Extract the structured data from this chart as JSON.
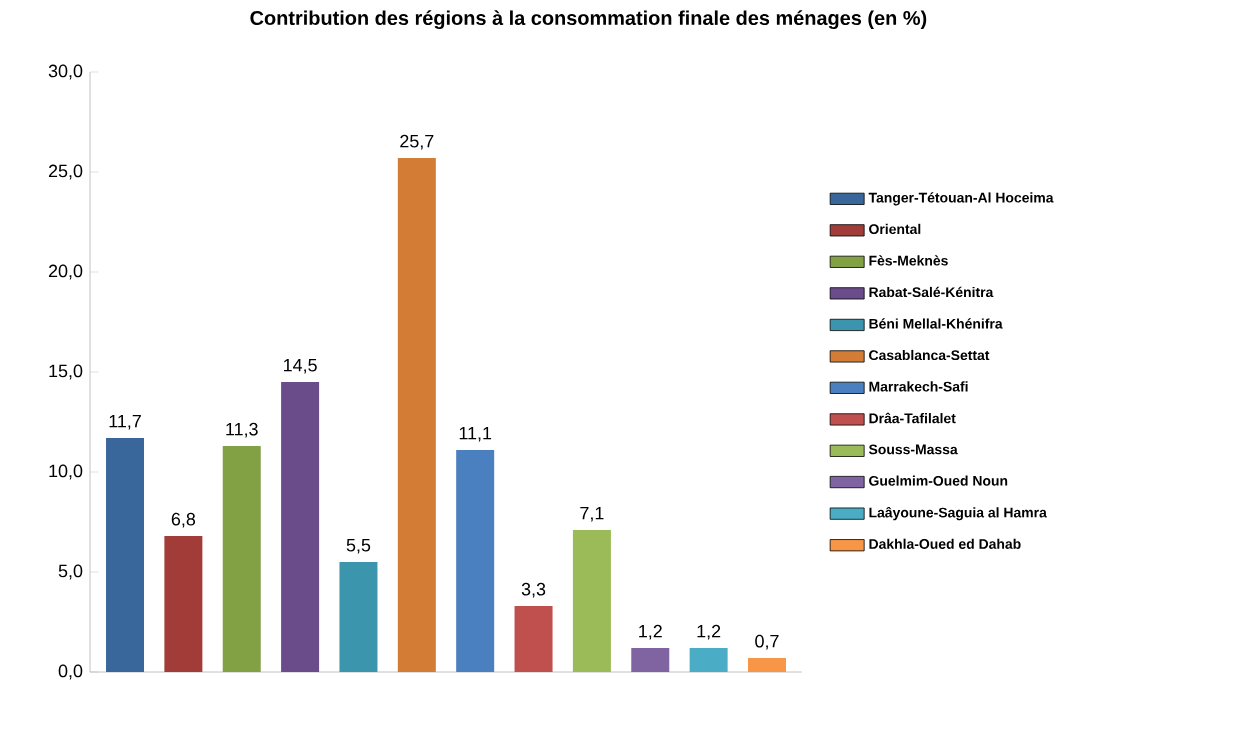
{
  "chart_data": {
    "type": "bar",
    "title": "Contribution des régions à la consommation finale des ménages (en %)",
    "categories": [
      null,
      null,
      null,
      null,
      null,
      null,
      null,
      null,
      null,
      null,
      null,
      null
    ],
    "series": [
      {
        "name": "Tanger-Tétouan-Al Hoceima",
        "color": "#3a679b",
        "values": [
          11.7,
          null,
          null,
          null,
          null,
          null,
          null,
          null,
          null,
          null,
          null,
          null
        ],
        "value_labels": [
          "11,7",
          null,
          null,
          null,
          null,
          null,
          null,
          null,
          null,
          null,
          null,
          null
        ]
      },
      {
        "name": "Oriental",
        "color": "#a13c39",
        "values": [
          null,
          6.8,
          null,
          null,
          null,
          null,
          null,
          null,
          null,
          null,
          null,
          null
        ],
        "value_labels": [
          null,
          "6,8",
          null,
          null,
          null,
          null,
          null,
          null,
          null,
          null,
          null,
          null
        ]
      },
      {
        "name": "Fès-Meknès",
        "color": "#82a044",
        "values": [
          null,
          null,
          11.3,
          null,
          null,
          null,
          null,
          null,
          null,
          null,
          null,
          null
        ],
        "value_labels": [
          null,
          null,
          "11,3",
          null,
          null,
          null,
          null,
          null,
          null,
          null,
          null,
          null
        ]
      },
      {
        "name": "Rabat-Salé-Kénitra",
        "color": "#6a4c8a",
        "values": [
          null,
          null,
          null,
          14.5,
          null,
          null,
          null,
          null,
          null,
          null,
          null,
          null
        ],
        "value_labels": [
          null,
          null,
          null,
          "14,5",
          null,
          null,
          null,
          null,
          null,
          null,
          null,
          null
        ]
      },
      {
        "name": "Béni Mellal-Khénifra",
        "color": "#3b96ad",
        "values": [
          null,
          null,
          null,
          null,
          5.5,
          null,
          null,
          null,
          null,
          null,
          null,
          null
        ],
        "value_labels": [
          null,
          null,
          null,
          null,
          "5,5",
          null,
          null,
          null,
          null,
          null,
          null,
          null
        ]
      },
      {
        "name": "Casablanca-Settat",
        "color": "#d27c35",
        "values": [
          null,
          null,
          null,
          null,
          null,
          25.7,
          null,
          null,
          null,
          null,
          null,
          null
        ],
        "value_labels": [
          null,
          null,
          null,
          null,
          null,
          "25,7",
          null,
          null,
          null,
          null,
          null,
          null
        ]
      },
      {
        "name": "Marrakech-Safi",
        "color": "#4a7fc0",
        "values": [
          null,
          null,
          null,
          null,
          null,
          null,
          11.1,
          null,
          null,
          null,
          null,
          null
        ],
        "value_labels": [
          null,
          null,
          null,
          null,
          null,
          null,
          "11,1",
          null,
          null,
          null,
          null,
          null
        ]
      },
      {
        "name": "Drâa-Tafilalet",
        "color": "#c0504d",
        "values": [
          null,
          null,
          null,
          null,
          null,
          null,
          null,
          3.3,
          null,
          null,
          null,
          null
        ],
        "value_labels": [
          null,
          null,
          null,
          null,
          null,
          null,
          null,
          "3,3",
          null,
          null,
          null,
          null
        ]
      },
      {
        "name": "Souss-Massa",
        "color": "#9bbb59",
        "values": [
          null,
          null,
          null,
          null,
          null,
          null,
          null,
          null,
          7.1,
          null,
          null,
          null
        ],
        "value_labels": [
          null,
          null,
          null,
          null,
          null,
          null,
          null,
          null,
          "7,1",
          null,
          null,
          null
        ]
      },
      {
        "name": "Guelmim-Oued Noun",
        "color": "#8064a2",
        "values": [
          null,
          null,
          null,
          null,
          null,
          null,
          null,
          null,
          null,
          1.2,
          null,
          null
        ],
        "value_labels": [
          null,
          null,
          null,
          null,
          null,
          null,
          null,
          null,
          null,
          "1,2",
          null,
          null
        ]
      },
      {
        "name": "Laâyoune-Saguia al Hamra",
        "color": "#4bacc6",
        "values": [
          null,
          null,
          null,
          null,
          null,
          null,
          null,
          null,
          null,
          null,
          1.2,
          null
        ],
        "value_labels": [
          null,
          null,
          null,
          null,
          null,
          null,
          null,
          null,
          null,
          null,
          "1,2",
          null
        ]
      },
      {
        "name": "Dakhla-Oued ed Dahab",
        "color": "#f79646",
        "values": [
          null,
          null,
          null,
          null,
          null,
          null,
          null,
          null,
          null,
          null,
          null,
          0.7
        ],
        "value_labels": [
          null,
          null,
          null,
          null,
          null,
          null,
          null,
          null,
          null,
          null,
          null,
          "0,7"
        ]
      }
    ],
    "ylim": [
      0,
      30
    ],
    "yticks": [
      {
        "value": 0,
        "label": "0,0"
      },
      {
        "value": 5,
        "label": "5,0"
      },
      {
        "value": 10,
        "label": "10,0"
      },
      {
        "value": 15,
        "label": "15,0"
      },
      {
        "value": 20,
        "label": "20,0"
      },
      {
        "value": 25,
        "label": "25,0"
      },
      {
        "value": 30,
        "label": "30,0"
      }
    ],
    "tick_labels": "y",
    "legend": "right"
  }
}
